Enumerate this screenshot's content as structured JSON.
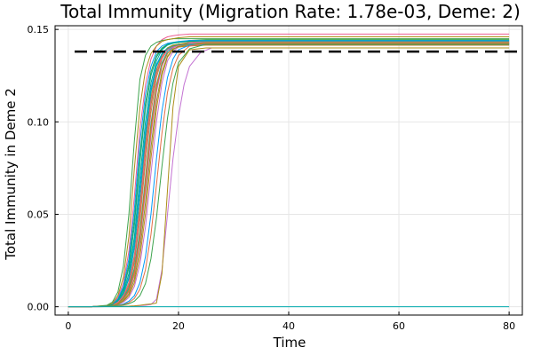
{
  "chart_data": {
    "type": "line",
    "title": "Total Immunity (Migration Rate: 1.78e-03, Deme: 2)",
    "xlabel": "Time",
    "ylabel": "Total Immunity in Deme 2",
    "xlim": [
      -2.4,
      82.4
    ],
    "ylim": [
      -0.0045,
      0.152
    ],
    "xticks": [
      0,
      20,
      40,
      60,
      80
    ],
    "xtick_labels": [
      "0",
      "20",
      "40",
      "60",
      "80"
    ],
    "yticks": [
      0,
      0.05,
      0.1,
      0.15
    ],
    "ytick_labels": [
      "0.00",
      "0.05",
      "0.10",
      "0.15"
    ],
    "grid": true,
    "legend": "none",
    "reference_line": {
      "y": 0.138,
      "style": "dashed",
      "color": "#000000"
    },
    "palette": [
      "#009AFA",
      "#E36F47",
      "#3EA44E",
      "#C371D2",
      "#AC8E18",
      "#00AAAE",
      "#ED5E93",
      "#C68225",
      "#00A98D",
      "#8E971E"
    ],
    "series": [
      {
        "x": [
          0,
          4,
          7,
          8,
          9,
          10,
          11,
          12,
          13,
          14,
          15,
          16,
          17,
          18,
          19,
          20,
          22,
          25,
          80
        ],
        "y": [
          0,
          0,
          0.0004,
          0.001,
          0.003,
          0.007,
          0.016,
          0.035,
          0.065,
          0.095,
          0.118,
          0.131,
          0.137,
          0.14,
          0.1415,
          0.142,
          0.1425,
          0.1425,
          0.1425
        ]
      },
      {
        "x": [
          0,
          4,
          7,
          8,
          9,
          10,
          11,
          12,
          13,
          14,
          15,
          16,
          17,
          18,
          19,
          20,
          22,
          25,
          80
        ],
        "y": [
          0,
          0,
          0.0004,
          0.0008,
          0.002,
          0.005,
          0.011,
          0.024,
          0.047,
          0.078,
          0.105,
          0.124,
          0.134,
          0.139,
          0.141,
          0.142,
          0.143,
          0.1435,
          0.1435
        ]
      },
      {
        "x": [
          0,
          4,
          7,
          8,
          9,
          10,
          11,
          12,
          13,
          14,
          15,
          16,
          17,
          18,
          19,
          20,
          22,
          25,
          80
        ],
        "y": [
          0,
          0,
          0.0005,
          0.0012,
          0.004,
          0.01,
          0.023,
          0.048,
          0.082,
          0.11,
          0.127,
          0.136,
          0.14,
          0.142,
          0.1428,
          0.143,
          0.144,
          0.1445,
          0.1445
        ]
      },
      {
        "x": [
          0,
          4,
          7,
          8,
          9,
          10,
          11,
          12,
          13,
          14,
          15,
          16,
          17,
          18,
          19,
          20,
          22,
          25,
          80
        ],
        "y": [
          0,
          0,
          0.0004,
          0.0007,
          0.0015,
          0.004,
          0.008,
          0.017,
          0.035,
          0.062,
          0.092,
          0.116,
          0.13,
          0.137,
          0.14,
          0.1415,
          0.1425,
          0.143,
          0.143
        ]
      },
      {
        "x": [
          0,
          4,
          7,
          8,
          9,
          10,
          11,
          12,
          13,
          14,
          15,
          16,
          17,
          18,
          19,
          20,
          22,
          25,
          80
        ],
        "y": [
          0,
          0,
          0.0004,
          0.0009,
          0.0025,
          0.006,
          0.013,
          0.028,
          0.055,
          0.088,
          0.113,
          0.128,
          0.136,
          0.14,
          0.1415,
          0.142,
          0.1425,
          0.1425,
          0.1425
        ]
      },
      {
        "x": [
          0,
          4,
          7,
          8,
          9,
          10,
          11,
          12,
          13,
          14,
          15,
          16,
          17,
          18,
          19,
          20,
          22,
          25,
          80
        ],
        "y": [
          0,
          0,
          0.0004,
          0.0007,
          0.0018,
          0.0045,
          0.01,
          0.021,
          0.041,
          0.07,
          0.099,
          0.12,
          0.132,
          0.138,
          0.1405,
          0.1415,
          0.142,
          0.142,
          0.142
        ]
      },
      {
        "x": [
          0,
          4,
          7,
          8,
          9,
          10,
          11,
          12,
          13,
          14,
          15,
          16,
          17,
          18,
          19,
          20,
          22,
          25,
          80
        ],
        "y": [
          0,
          0,
          0.0006,
          0.0015,
          0.005,
          0.013,
          0.03,
          0.06,
          0.096,
          0.12,
          0.134,
          0.141,
          0.1445,
          0.146,
          0.1466,
          0.147,
          0.1475,
          0.1475,
          0.1475
        ]
      },
      {
        "x": [
          0,
          4,
          7,
          8,
          9,
          10,
          11,
          12,
          13,
          14,
          15,
          16,
          17,
          18,
          19,
          20,
          22,
          25,
          80
        ],
        "y": [
          0,
          0,
          0.0004,
          0.0006,
          0.0012,
          0.003,
          0.006,
          0.013,
          0.027,
          0.05,
          0.08,
          0.107,
          0.125,
          0.135,
          0.139,
          0.141,
          0.1425,
          0.143,
          0.143
        ]
      },
      {
        "x": [
          0,
          4,
          7,
          8,
          9,
          10,
          11,
          12,
          13,
          14,
          15,
          16,
          17,
          18,
          19,
          20,
          22,
          25,
          80
        ],
        "y": [
          0,
          0,
          0.0005,
          0.0011,
          0.0032,
          0.008,
          0.018,
          0.038,
          0.07,
          0.1,
          0.121,
          0.133,
          0.139,
          0.1415,
          0.1425,
          0.143,
          0.1435,
          0.144,
          0.144
        ]
      },
      {
        "x": [
          0,
          4,
          7,
          8,
          9,
          10,
          11,
          12,
          13,
          14,
          15,
          16,
          17,
          18,
          19,
          20,
          22,
          25,
          80
        ],
        "y": [
          0,
          0,
          0.0004,
          0.0008,
          0.0022,
          0.0055,
          0.012,
          0.026,
          0.051,
          0.083,
          0.109,
          0.126,
          0.135,
          0.139,
          0.141,
          0.1418,
          0.1425,
          0.143,
          0.143
        ]
      },
      {
        "x": [
          0,
          4,
          7,
          8,
          9,
          10,
          11,
          12,
          13,
          14,
          15,
          16,
          17,
          18,
          19,
          20,
          22,
          25,
          80
        ],
        "y": [
          0,
          0,
          0.0005,
          0.0013,
          0.0042,
          0.011,
          0.026,
          0.053,
          0.089,
          0.115,
          0.13,
          0.138,
          0.141,
          0.1425,
          0.143,
          0.1435,
          0.144,
          0.144,
          0.144
        ]
      },
      {
        "x": [
          0,
          4,
          7,
          8,
          9,
          10,
          11,
          12,
          13,
          14,
          15,
          16,
          17,
          18,
          19,
          20,
          22,
          25,
          80
        ],
        "y": [
          0,
          0,
          0.0004,
          0.0007,
          0.0016,
          0.0038,
          0.0085,
          0.018,
          0.037,
          0.065,
          0.095,
          0.118,
          0.131,
          0.137,
          0.1395,
          0.1405,
          0.141,
          0.1415,
          0.1415
        ]
      },
      {
        "x": [
          0,
          4,
          7,
          8,
          9,
          10,
          11,
          12,
          13,
          14,
          15,
          16,
          17,
          18,
          19,
          20,
          22,
          25,
          80
        ],
        "y": [
          0,
          0,
          0.0008,
          0.0025,
          0.008,
          0.022,
          0.05,
          0.09,
          0.123,
          0.136,
          0.141,
          0.143,
          0.144,
          0.1445,
          0.145,
          0.145,
          0.145,
          0.145,
          0.145
        ]
      },
      {
        "x": [
          0,
          4,
          7,
          8,
          9,
          10,
          11,
          12,
          13,
          14,
          15,
          16,
          17,
          18,
          19,
          20,
          22,
          25,
          80
        ],
        "y": [
          0,
          0,
          0.0004,
          0.0006,
          0.0011,
          0.0025,
          0.005,
          0.011,
          0.023,
          0.043,
          0.072,
          0.1,
          0.121,
          0.133,
          0.138,
          0.1405,
          0.1425,
          0.1435,
          0.1435
        ]
      },
      {
        "x": [
          0,
          4,
          7,
          8,
          9,
          10,
          11,
          12,
          13,
          14,
          15,
          16,
          17,
          18,
          19,
          20,
          22,
          25,
          80
        ],
        "y": [
          0,
          0,
          0.0006,
          0.0018,
          0.006,
          0.016,
          0.038,
          0.075,
          0.108,
          0.128,
          0.137,
          0.141,
          0.1435,
          0.1445,
          0.145,
          0.1455,
          0.146,
          0.146,
          0.146
        ]
      },
      {
        "x": [
          0,
          4,
          7,
          8,
          9,
          10,
          11,
          12,
          13,
          14,
          15,
          16,
          17,
          18,
          19,
          20,
          22,
          25,
          80
        ],
        "y": [
          0,
          0,
          0.0005,
          0.001,
          0.0028,
          0.007,
          0.015,
          0.032,
          0.06,
          0.092,
          0.116,
          0.13,
          0.1365,
          0.1395,
          0.1408,
          0.1415,
          0.142,
          0.142,
          0.142
        ]
      },
      {
        "x": [
          0,
          4,
          7,
          8,
          9,
          10,
          11,
          12,
          13,
          14,
          15,
          16,
          17,
          18,
          19,
          20,
          22,
          25,
          80
        ],
        "y": [
          0,
          0,
          0.0004,
          0.0009,
          0.0024,
          0.0058,
          0.0125,
          0.027,
          0.053,
          0.085,
          0.111,
          0.127,
          0.135,
          0.139,
          0.1405,
          0.1412,
          0.1418,
          0.142,
          0.142
        ]
      },
      {
        "x": [
          0,
          4,
          7,
          8,
          9,
          10,
          11,
          12,
          13,
          14,
          15,
          16,
          17,
          18,
          19,
          20,
          22,
          25,
          80
        ],
        "y": [
          0,
          0,
          0.0004,
          0.0007,
          0.0017,
          0.0042,
          0.0092,
          0.0195,
          0.039,
          0.068,
          0.097,
          0.119,
          0.131,
          0.137,
          0.1395,
          0.1405,
          0.1412,
          0.1415,
          0.1415
        ]
      },
      {
        "x": [
          0,
          4,
          7,
          8,
          9,
          10,
          11,
          12,
          13,
          14,
          15,
          16,
          17,
          18,
          19,
          20,
          22,
          25,
          80
        ],
        "y": [
          0,
          0,
          0.0005,
          0.0012,
          0.0036,
          0.0092,
          0.021,
          0.044,
          0.078,
          0.107,
          0.125,
          0.135,
          0.1395,
          0.1418,
          0.1428,
          0.1432,
          0.1436,
          0.1438,
          0.1438
        ]
      },
      {
        "x": [
          0,
          4,
          7,
          8,
          9,
          10,
          11,
          12,
          13,
          14,
          15,
          16,
          17,
          18,
          19,
          20,
          22,
          25,
          80
        ],
        "y": [
          0,
          0,
          0.0004,
          0.0006,
          0.0013,
          0.0032,
          0.007,
          0.015,
          0.031,
          0.056,
          0.086,
          0.111,
          0.127,
          0.1355,
          0.1392,
          0.1408,
          0.1418,
          0.1422,
          0.1422
        ]
      },
      {
        "x": [
          0,
          4,
          7,
          8,
          9,
          10,
          11,
          12,
          13,
          14,
          15,
          16,
          17,
          18,
          19,
          20,
          22,
          25,
          80
        ],
        "y": [
          0,
          0,
          0.0004,
          0.0005,
          0.0008,
          0.0015,
          0.003,
          0.006,
          0.013,
          0.027,
          0.05,
          0.08,
          0.106,
          0.124,
          0.134,
          0.139,
          0.1415,
          0.142,
          0.142
        ]
      },
      {
        "x": [
          0,
          4,
          7,
          8,
          9,
          10,
          11,
          12,
          13,
          14,
          15,
          16,
          17,
          18,
          19,
          20,
          22,
          25,
          80
        ],
        "y": [
          0,
          0,
          0.0004,
          0.0005,
          0.0007,
          0.0012,
          0.0022,
          0.0045,
          0.0095,
          0.02,
          0.039,
          0.066,
          0.094,
          0.116,
          0.129,
          0.136,
          0.141,
          0.1425,
          0.1425
        ]
      },
      {
        "x": [
          0,
          4,
          7,
          8,
          9,
          10,
          11,
          12,
          13,
          14,
          15,
          16,
          17,
          18,
          19,
          20,
          22,
          25,
          80
        ],
        "y": [
          0,
          0,
          0.0004,
          0.0005,
          0.0006,
          0.0009,
          0.0016,
          0.003,
          0.006,
          0.0125,
          0.026,
          0.048,
          0.076,
          0.102,
          0.121,
          0.132,
          0.1395,
          0.142,
          0.142
        ]
      },
      {
        "x": [
          0,
          5,
          10,
          12,
          13,
          14,
          15,
          16,
          17,
          18,
          19,
          20,
          21,
          22,
          24,
          26,
          80
        ],
        "y": [
          0,
          0,
          0.0002,
          0.0004,
          0.0006,
          0.0008,
          0.0012,
          0.004,
          0.02,
          0.05,
          0.08,
          0.103,
          0.12,
          0.13,
          0.1375,
          0.14,
          0.14
        ]
      },
      {
        "x": [
          0,
          5,
          10,
          11,
          12,
          13,
          14,
          15,
          16,
          17,
          18,
          19,
          20,
          22,
          25,
          80
        ],
        "y": [
          0,
          0,
          0.0002,
          0.0003,
          0.0005,
          0.0008,
          0.0012,
          0.0015,
          0.002,
          0.018,
          0.063,
          0.108,
          0.13,
          0.139,
          0.14,
          0.14
        ]
      },
      {
        "x": [
          0,
          80
        ],
        "y": [
          0,
          0
        ]
      }
    ]
  }
}
